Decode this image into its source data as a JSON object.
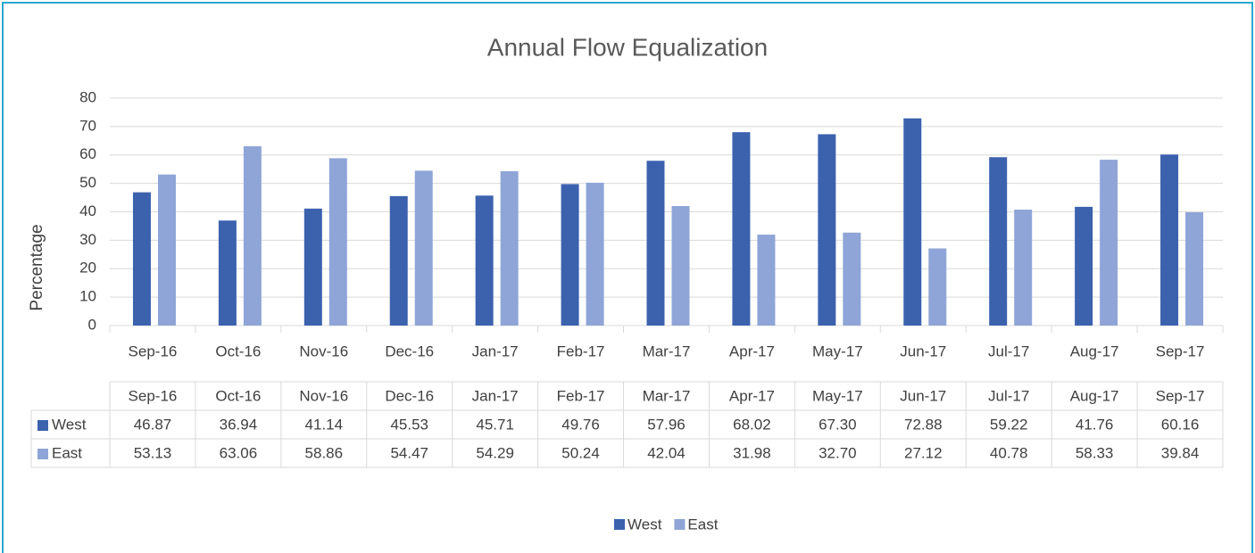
{
  "chart_data": {
    "type": "bar",
    "title": "Annual Flow Equalization",
    "y_label": "Percentage",
    "categories": [
      "Sep-16",
      "Oct-16",
      "Nov-16",
      "Dec-16",
      "Jan-17",
      "Feb-17",
      "Mar-17",
      "Apr-17",
      "May-17",
      "Jun-17",
      "Jul-17",
      "Aug-17",
      "Sep-17"
    ],
    "series": [
      {
        "name": "West",
        "color": "#3c62ae",
        "values": [
          46.87,
          36.94,
          41.14,
          45.53,
          45.71,
          49.76,
          57.96,
          68.02,
          67.3,
          72.88,
          59.22,
          41.76,
          60.16
        ],
        "value_labels": [
          "46.87",
          "36.94",
          "41.14",
          "45.53",
          "45.71",
          "49.76",
          "57.96",
          "68.02",
          "67.30",
          "72.88",
          "59.22",
          "41.76",
          "60.16"
        ]
      },
      {
        "name": "East",
        "color": "#8fa5d7",
        "values": [
          53.13,
          63.06,
          58.86,
          54.47,
          54.29,
          50.24,
          42.04,
          31.98,
          32.7,
          27.12,
          40.78,
          58.33,
          39.84
        ],
        "value_labels": [
          "53.13",
          "63.06",
          "58.86",
          "54.47",
          "54.29",
          "50.24",
          "42.04",
          "31.98",
          "32.70",
          "27.12",
          "40.78",
          "58.33",
          "39.84"
        ]
      }
    ],
    "ylim": [
      0,
      80
    ],
    "yticks": [
      0,
      10,
      20,
      30,
      40,
      50,
      60,
      70,
      80
    ],
    "grid": true,
    "legend": "bottom",
    "data_table": true
  }
}
